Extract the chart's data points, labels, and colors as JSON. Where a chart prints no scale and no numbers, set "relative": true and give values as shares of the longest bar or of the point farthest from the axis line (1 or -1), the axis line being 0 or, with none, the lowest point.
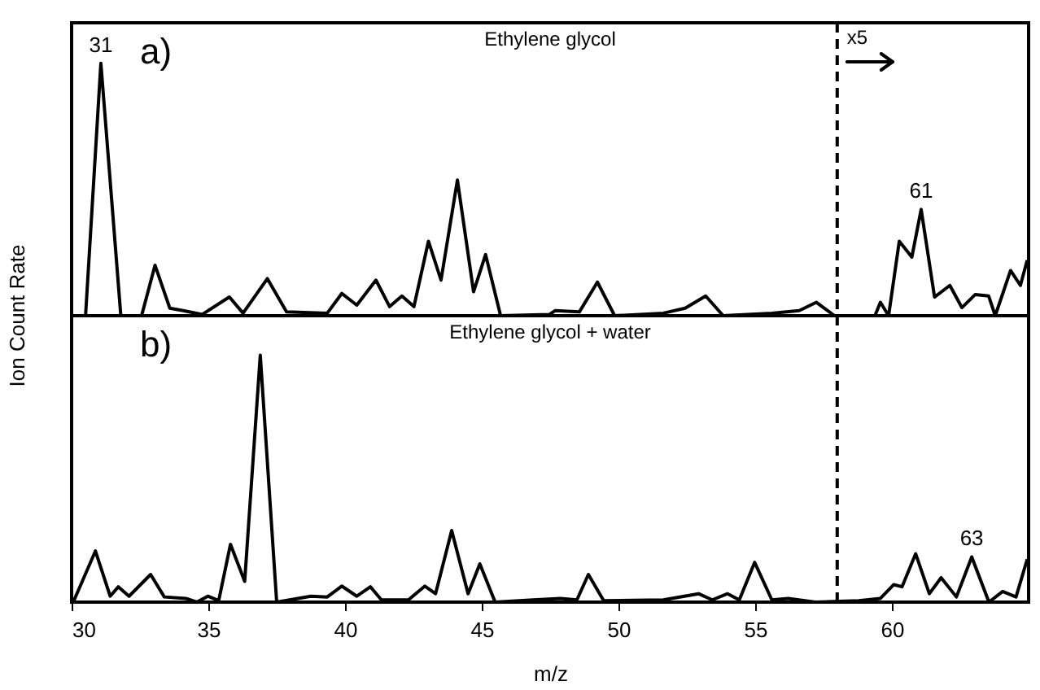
{
  "chart_data": [
    {
      "type": "line",
      "title": "Ethylene glycol",
      "ylabel": "Ion Count Rate",
      "relative": true,
      "xlim": [
        30,
        65
      ],
      "tick_labels": false,
      "annotations": [
        "a)",
        {
          "text": "31",
          "x": 31.07,
          "y": 1
        },
        {
          "text": "61",
          "x": 61.07,
          "y": 0.421
        }
      ],
      "ref_lines": [
        {
          "axis": "x",
          "value": 58,
          "label": "x5",
          "line_style": "dashed"
        }
      ],
      "x": [
        30.51,
        31.07,
        31.8,
        32.56,
        33.05,
        33.59,
        34.08,
        34.78,
        35.77,
        36.27,
        37.16,
        37.86,
        39.35,
        39.88,
        40.43,
        41.13,
        41.63,
        42.08,
        42.52,
        43.05,
        43.51,
        44.11,
        44.7,
        45.14,
        45.69,
        47.48,
        47.68,
        48.57,
        49.23,
        49.86,
        51.64,
        52.44,
        53.19,
        53.83,
        55.61,
        56.61,
        57.24,
        57.9,
        59.38,
        59.58,
        59.88,
        60.27,
        60.73,
        61.07,
        61.56,
        62.12,
        62.56,
        63.05,
        63.54,
        63.78,
        64.34,
        64.7,
        64.95
      ],
      "series": [
        {
          "color": "#000000",
          "values": [
            0,
            1,
            0,
            0,
            0.2,
            0.03,
            0.02,
            0.005,
            0.074,
            0.01,
            0.147,
            0.015,
            0.01,
            0.088,
            0.042,
            0.141,
            0.036,
            0.078,
            0.036,
            0.295,
            0.141,
            0.537,
            0.095,
            0.242,
            0,
            0.005,
            0.02,
            0.015,
            0.133,
            0,
            0.01,
            0.03,
            0.078,
            0,
            0.01,
            0.02,
            0.053,
            0,
            0,
            0.053,
            0,
            0.295,
            0.232,
            0.421,
            0.074,
            0.12,
            0.032,
            0.084,
            0.078,
            0,
            0.179,
            0.12,
            0.22
          ]
        }
      ]
    },
    {
      "type": "line",
      "title": "Ethylene glycol + water",
      "xlabel": "m/z",
      "relative": true,
      "xlim": [
        30,
        65
      ],
      "xticks": [
        30,
        35,
        40,
        45,
        50,
        55,
        60
      ],
      "tick_labels": "x",
      "annotations": [
        "b)",
        {
          "text": "63",
          "x": 62.92,
          "y": 0.183
        }
      ],
      "ref_lines": [
        {
          "axis": "x",
          "value": 58,
          "line_style": "dashed"
        }
      ],
      "x": [
        30.06,
        30.87,
        31.41,
        31.71,
        32.1,
        32.89,
        33.39,
        34.18,
        34.58,
        34.98,
        35.38,
        35.81,
        36.33,
        36.9,
        37.5,
        38.75,
        39.35,
        39.88,
        40.43,
        40.93,
        41.33,
        42.32,
        42.92,
        43.31,
        43.9,
        44.5,
        44.93,
        45.49,
        46.88,
        47.88,
        48.48,
        48.9,
        49.46,
        51.64,
        52.93,
        53.43,
        53.99,
        54.42,
        54.98,
        55.61,
        56.21,
        57.2,
        58.79,
        59.58,
        60.07,
        60.37,
        60.87,
        61.37,
        61.8,
        62.36,
        62.92,
        63.55,
        64.05,
        64.54,
        64.95
      ],
      "series": [
        {
          "color": "#000000",
          "values": [
            0,
            0.207,
            0.024,
            0.062,
            0.024,
            0.112,
            0.021,
            0.015,
            0,
            0.024,
            0.006,
            0.234,
            0.084,
            1,
            0,
            0.024,
            0.021,
            0.065,
            0.024,
            0.062,
            0.009,
            0.009,
            0.065,
            0.034,
            0.29,
            0.034,
            0.155,
            0,
            0.009,
            0.015,
            0.009,
            0.112,
            0.006,
            0.009,
            0.034,
            0.009,
            0.034,
            0.009,
            0.161,
            0.009,
            0.015,
            0,
            0.006,
            0.015,
            0.071,
            0.062,
            0.196,
            0.034,
            0.099,
            0.021,
            0.183,
            0,
            0.043,
            0.021,
            0.174
          ]
        }
      ]
    }
  ]
}
